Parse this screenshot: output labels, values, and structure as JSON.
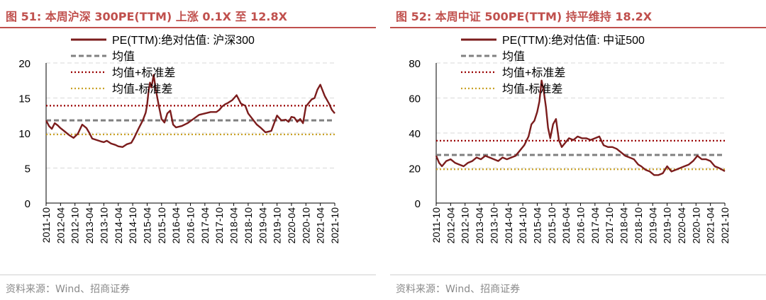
{
  "charts": [
    {
      "id": "hs300",
      "title": "图 51:  本周沪深 300PE(TTM) 上涨 0.1X 至 12.8X",
      "source": "资料来源：Wind、招商证券",
      "chart_data": {
        "type": "line",
        "legend": [
          "PE(TTM):绝对估值: 沪深300",
          "均值",
          "均值+标准差",
          "均值-标准差"
        ],
        "legend_placement": "top-left",
        "ylim": [
          0,
          20
        ],
        "yticks": [
          0,
          5,
          10,
          15,
          20
        ],
        "xticks": [
          "2011-10",
          "2012-04",
          "2012-10",
          "2013-04",
          "2013-10",
          "2014-04",
          "2014-10",
          "2015-04",
          "2015-10",
          "2016-04",
          "2016-10",
          "2017-04",
          "2017-10",
          "2018-04",
          "2018-10",
          "2019-04",
          "2019-10",
          "2020-04",
          "2020-10",
          "2021-04",
          "2021-10"
        ],
        "grid": "horizontal dashed",
        "series": [
          {
            "name": "PE(TTM):绝对估值: 沪深300",
            "color": "#7b1c1c",
            "x": [
              0.0,
              0.2,
              0.4,
              0.6,
              0.8,
              1.0,
              1.3,
              1.6,
              1.9,
              2.2,
              2.5,
              2.8,
              3.0,
              3.2,
              3.5,
              3.8,
              4.0,
              4.2,
              4.5,
              4.8,
              5.0,
              5.3,
              5.6,
              5.9,
              6.1,
              6.4,
              6.7,
              6.9,
              7.0,
              7.1,
              7.2,
              7.3,
              7.45,
              7.6,
              7.8,
              8.0,
              8.2,
              8.4,
              8.6,
              8.8,
              9.0,
              9.4,
              9.8,
              10.2,
              10.6,
              11.0,
              11.4,
              11.8,
              12.0,
              12.2,
              12.4,
              12.6,
              12.9,
              13.2,
              13.5,
              13.8,
              14.0,
              14.3,
              14.6,
              14.9,
              15.2,
              15.6,
              16.0,
              16.3,
              16.6,
              16.8,
              17.0,
              17.2,
              17.4,
              17.6,
              17.8,
              18.0,
              18.2,
              18.4,
              18.6,
              18.8,
              19.0,
              19.3,
              19.6,
              19.8,
              20.0
            ],
            "values": [
              11.8,
              11.0,
              10.6,
              11.4,
              11.1,
              10.7,
              10.2,
              9.7,
              9.3,
              9.9,
              11.2,
              10.7,
              10.0,
              9.2,
              9.0,
              8.8,
              8.7,
              8.9,
              8.5,
              8.3,
              8.1,
              8.0,
              8.4,
              8.6,
              9.3,
              10.6,
              11.8,
              12.9,
              14.0,
              16.0,
              17.2,
              16.5,
              18.3,
              16.2,
              14.0,
              12.0,
              11.5,
              12.8,
              13.2,
              11.2,
              10.8,
              11.0,
              11.4,
              12.0,
              12.6,
              12.8,
              13.0,
              13.0,
              13.3,
              13.8,
              14.1,
              14.3,
              14.7,
              15.4,
              14.2,
              13.9,
              12.8,
              12.0,
              11.2,
              10.7,
              10.1,
              10.3,
              12.5,
              11.8,
              11.9,
              11.6,
              12.3,
              12.2,
              11.6,
              12.0,
              11.4,
              13.8,
              14.3,
              14.8,
              15.0,
              16.2,
              16.9,
              15.3,
              14.2,
              13.3,
              12.8
            ]
          },
          {
            "name": "均值",
            "color": "#808080",
            "constant": 11.8
          },
          {
            "name": "均值+标准差",
            "color": "#990000",
            "constant": 13.9
          },
          {
            "name": "均值-标准差",
            "color": "#c9a227",
            "constant": 9.8
          }
        ]
      }
    },
    {
      "id": "csi500",
      "title": "图 52:  本周中证 500PE(TTM) 持平维持 18.2X",
      "source": "资料来源：Wind、招商证券",
      "chart_data": {
        "type": "line",
        "legend": [
          "PE(TTM):绝对估值: 中证500",
          "均值",
          "均值+标准差",
          "均值-标准差"
        ],
        "legend_placement": "top-left",
        "ylim": [
          0,
          80
        ],
        "yticks": [
          0,
          20,
          40,
          60,
          80
        ],
        "xticks": [
          "2011-10",
          "2012-04",
          "2012-10",
          "2013-04",
          "2013-10",
          "2014-04",
          "2014-10",
          "2015-04",
          "2015-10",
          "2016-04",
          "2016-10",
          "2017-04",
          "2017-10",
          "2018-04",
          "2018-10",
          "2019-04",
          "2019-10",
          "2020-04",
          "2020-10",
          "2021-04",
          "2021-10"
        ],
        "grid": "horizontal dashed",
        "series": [
          {
            "name": "PE(TTM):绝对估值: 中证500",
            "color": "#7b1c1c",
            "x": [
              0.0,
              0.2,
              0.4,
              0.7,
              1.0,
              1.3,
              1.6,
              1.9,
              2.2,
              2.5,
              2.8,
              3.1,
              3.4,
              3.7,
              4.0,
              4.3,
              4.6,
              4.9,
              5.2,
              5.5,
              5.8,
              6.1,
              6.4,
              6.6,
              6.8,
              7.0,
              7.15,
              7.3,
              7.45,
              7.6,
              7.75,
              7.9,
              8.1,
              8.3,
              8.5,
              8.7,
              8.9,
              9.2,
              9.5,
              9.8,
              10.1,
              10.4,
              10.7,
              11.0,
              11.3,
              11.6,
              11.9,
              12.2,
              12.5,
              12.8,
              13.1,
              13.4,
              13.7,
              14.0,
              14.2,
              14.5,
              14.8,
              15.1,
              15.4,
              15.7,
              16.0,
              16.3,
              16.6,
              16.9,
              17.2,
              17.5,
              17.8,
              18.1,
              18.4,
              18.7,
              19.0,
              19.3,
              19.6,
              20.0
            ],
            "values": [
              27,
              23,
              21,
              24,
              25,
              23,
              22,
              21,
              23,
              24,
              26,
              25,
              27,
              26,
              25,
              24,
              26,
              25,
              26,
              27,
              30,
              33,
              38,
              45,
              47,
              52,
              58,
              70,
              64,
              55,
              43,
              37,
              45,
              48,
              36,
              32,
              34,
              37,
              36,
              38,
              37,
              37,
              36,
              37,
              38,
              33,
              32,
              32,
              31,
              29,
              27,
              26,
              25,
              22,
              21,
              19,
              18,
              16,
              16,
              17,
              21,
              18,
              19,
              20,
              21,
              22,
              24,
              27,
              25,
              25,
              24,
              21,
              20,
              18.2
            ]
          },
          {
            "name": "均值",
            "color": "#808080",
            "constant": 27.5
          },
          {
            "name": "均值+标准差",
            "color": "#990000",
            "constant": 35.6
          },
          {
            "name": "均值-标准差",
            "color": "#c9a227",
            "constant": 19.3
          }
        ]
      }
    }
  ]
}
